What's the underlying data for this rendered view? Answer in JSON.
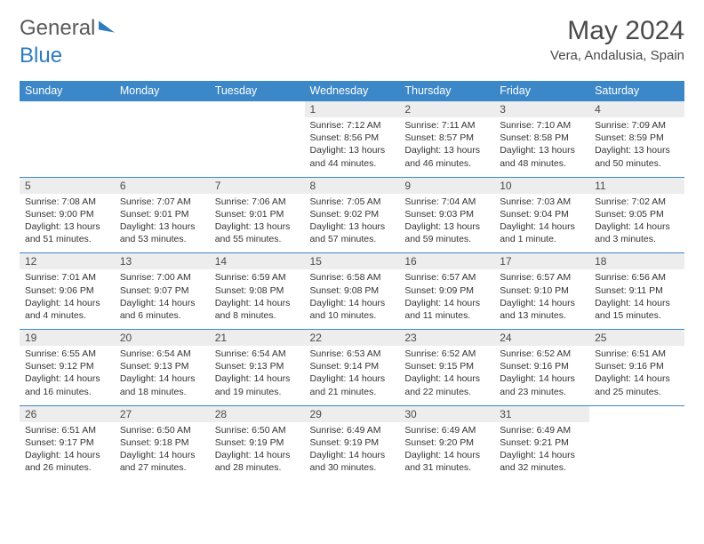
{
  "brand": {
    "part1": "General",
    "part2": "Blue"
  },
  "title": "May 2024",
  "location": "Vera, Andalusia, Spain",
  "header_color": "#3b87c8",
  "daynum_bg": "#ededed",
  "row_border_color": "#3b87c8",
  "day_headers": [
    "Sunday",
    "Monday",
    "Tuesday",
    "Wednesday",
    "Thursday",
    "Friday",
    "Saturday"
  ],
  "weeks": [
    [
      {
        "n": "",
        "sunrise": "",
        "sunset": "",
        "dl1": "",
        "dl2": ""
      },
      {
        "n": "",
        "sunrise": "",
        "sunset": "",
        "dl1": "",
        "dl2": ""
      },
      {
        "n": "",
        "sunrise": "",
        "sunset": "",
        "dl1": "",
        "dl2": ""
      },
      {
        "n": "1",
        "sunrise": "Sunrise: 7:12 AM",
        "sunset": "Sunset: 8:56 PM",
        "dl1": "Daylight: 13 hours",
        "dl2": "and 44 minutes."
      },
      {
        "n": "2",
        "sunrise": "Sunrise: 7:11 AM",
        "sunset": "Sunset: 8:57 PM",
        "dl1": "Daylight: 13 hours",
        "dl2": "and 46 minutes."
      },
      {
        "n": "3",
        "sunrise": "Sunrise: 7:10 AM",
        "sunset": "Sunset: 8:58 PM",
        "dl1": "Daylight: 13 hours",
        "dl2": "and 48 minutes."
      },
      {
        "n": "4",
        "sunrise": "Sunrise: 7:09 AM",
        "sunset": "Sunset: 8:59 PM",
        "dl1": "Daylight: 13 hours",
        "dl2": "and 50 minutes."
      }
    ],
    [
      {
        "n": "5",
        "sunrise": "Sunrise: 7:08 AM",
        "sunset": "Sunset: 9:00 PM",
        "dl1": "Daylight: 13 hours",
        "dl2": "and 51 minutes."
      },
      {
        "n": "6",
        "sunrise": "Sunrise: 7:07 AM",
        "sunset": "Sunset: 9:01 PM",
        "dl1": "Daylight: 13 hours",
        "dl2": "and 53 minutes."
      },
      {
        "n": "7",
        "sunrise": "Sunrise: 7:06 AM",
        "sunset": "Sunset: 9:01 PM",
        "dl1": "Daylight: 13 hours",
        "dl2": "and 55 minutes."
      },
      {
        "n": "8",
        "sunrise": "Sunrise: 7:05 AM",
        "sunset": "Sunset: 9:02 PM",
        "dl1": "Daylight: 13 hours",
        "dl2": "and 57 minutes."
      },
      {
        "n": "9",
        "sunrise": "Sunrise: 7:04 AM",
        "sunset": "Sunset: 9:03 PM",
        "dl1": "Daylight: 13 hours",
        "dl2": "and 59 minutes."
      },
      {
        "n": "10",
        "sunrise": "Sunrise: 7:03 AM",
        "sunset": "Sunset: 9:04 PM",
        "dl1": "Daylight: 14 hours",
        "dl2": "and 1 minute."
      },
      {
        "n": "11",
        "sunrise": "Sunrise: 7:02 AM",
        "sunset": "Sunset: 9:05 PM",
        "dl1": "Daylight: 14 hours",
        "dl2": "and 3 minutes."
      }
    ],
    [
      {
        "n": "12",
        "sunrise": "Sunrise: 7:01 AM",
        "sunset": "Sunset: 9:06 PM",
        "dl1": "Daylight: 14 hours",
        "dl2": "and 4 minutes."
      },
      {
        "n": "13",
        "sunrise": "Sunrise: 7:00 AM",
        "sunset": "Sunset: 9:07 PM",
        "dl1": "Daylight: 14 hours",
        "dl2": "and 6 minutes."
      },
      {
        "n": "14",
        "sunrise": "Sunrise: 6:59 AM",
        "sunset": "Sunset: 9:08 PM",
        "dl1": "Daylight: 14 hours",
        "dl2": "and 8 minutes."
      },
      {
        "n": "15",
        "sunrise": "Sunrise: 6:58 AM",
        "sunset": "Sunset: 9:08 PM",
        "dl1": "Daylight: 14 hours",
        "dl2": "and 10 minutes."
      },
      {
        "n": "16",
        "sunrise": "Sunrise: 6:57 AM",
        "sunset": "Sunset: 9:09 PM",
        "dl1": "Daylight: 14 hours",
        "dl2": "and 11 minutes."
      },
      {
        "n": "17",
        "sunrise": "Sunrise: 6:57 AM",
        "sunset": "Sunset: 9:10 PM",
        "dl1": "Daylight: 14 hours",
        "dl2": "and 13 minutes."
      },
      {
        "n": "18",
        "sunrise": "Sunrise: 6:56 AM",
        "sunset": "Sunset: 9:11 PM",
        "dl1": "Daylight: 14 hours",
        "dl2": "and 15 minutes."
      }
    ],
    [
      {
        "n": "19",
        "sunrise": "Sunrise: 6:55 AM",
        "sunset": "Sunset: 9:12 PM",
        "dl1": "Daylight: 14 hours",
        "dl2": "and 16 minutes."
      },
      {
        "n": "20",
        "sunrise": "Sunrise: 6:54 AM",
        "sunset": "Sunset: 9:13 PM",
        "dl1": "Daylight: 14 hours",
        "dl2": "and 18 minutes."
      },
      {
        "n": "21",
        "sunrise": "Sunrise: 6:54 AM",
        "sunset": "Sunset: 9:13 PM",
        "dl1": "Daylight: 14 hours",
        "dl2": "and 19 minutes."
      },
      {
        "n": "22",
        "sunrise": "Sunrise: 6:53 AM",
        "sunset": "Sunset: 9:14 PM",
        "dl1": "Daylight: 14 hours",
        "dl2": "and 21 minutes."
      },
      {
        "n": "23",
        "sunrise": "Sunrise: 6:52 AM",
        "sunset": "Sunset: 9:15 PM",
        "dl1": "Daylight: 14 hours",
        "dl2": "and 22 minutes."
      },
      {
        "n": "24",
        "sunrise": "Sunrise: 6:52 AM",
        "sunset": "Sunset: 9:16 PM",
        "dl1": "Daylight: 14 hours",
        "dl2": "and 23 minutes."
      },
      {
        "n": "25",
        "sunrise": "Sunrise: 6:51 AM",
        "sunset": "Sunset: 9:16 PM",
        "dl1": "Daylight: 14 hours",
        "dl2": "and 25 minutes."
      }
    ],
    [
      {
        "n": "26",
        "sunrise": "Sunrise: 6:51 AM",
        "sunset": "Sunset: 9:17 PM",
        "dl1": "Daylight: 14 hours",
        "dl2": "and 26 minutes."
      },
      {
        "n": "27",
        "sunrise": "Sunrise: 6:50 AM",
        "sunset": "Sunset: 9:18 PM",
        "dl1": "Daylight: 14 hours",
        "dl2": "and 27 minutes."
      },
      {
        "n": "28",
        "sunrise": "Sunrise: 6:50 AM",
        "sunset": "Sunset: 9:19 PM",
        "dl1": "Daylight: 14 hours",
        "dl2": "and 28 minutes."
      },
      {
        "n": "29",
        "sunrise": "Sunrise: 6:49 AM",
        "sunset": "Sunset: 9:19 PM",
        "dl1": "Daylight: 14 hours",
        "dl2": "and 30 minutes."
      },
      {
        "n": "30",
        "sunrise": "Sunrise: 6:49 AM",
        "sunset": "Sunset: 9:20 PM",
        "dl1": "Daylight: 14 hours",
        "dl2": "and 31 minutes."
      },
      {
        "n": "31",
        "sunrise": "Sunrise: 6:49 AM",
        "sunset": "Sunset: 9:21 PM",
        "dl1": "Daylight: 14 hours",
        "dl2": "and 32 minutes."
      },
      {
        "n": "",
        "sunrise": "",
        "sunset": "",
        "dl1": "",
        "dl2": ""
      }
    ]
  ]
}
